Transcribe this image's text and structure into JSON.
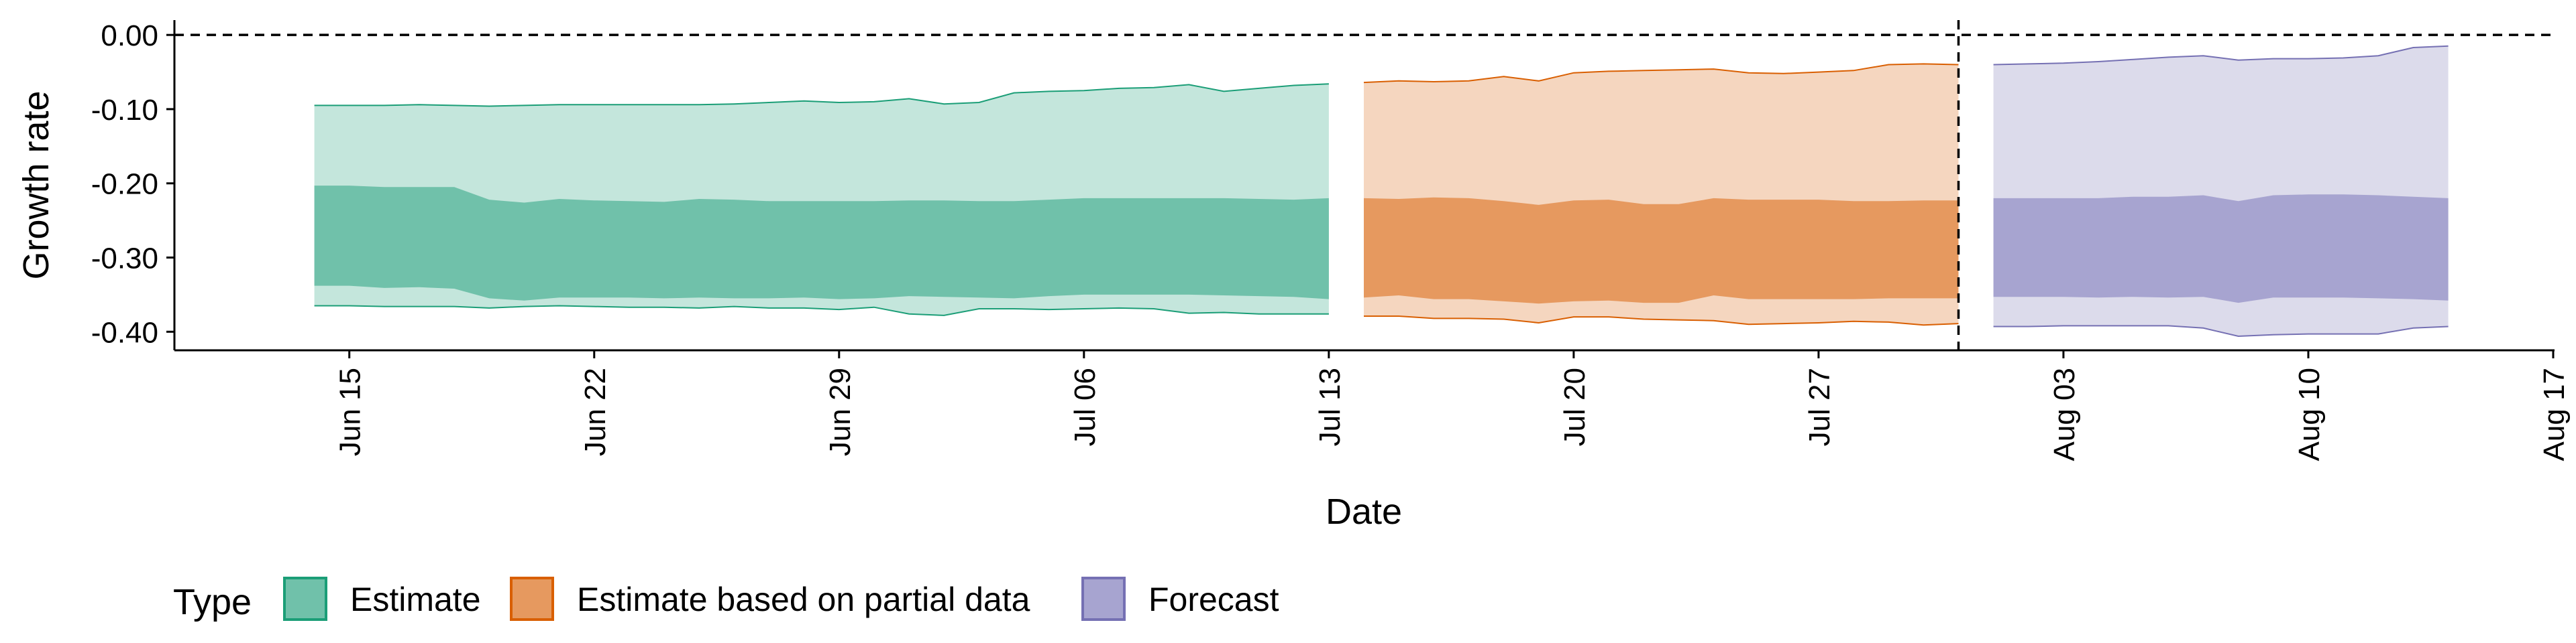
{
  "chart_data": {
    "type": "area",
    "xlabel": "Date",
    "ylabel": "Growth rate",
    "ylim": [
      -0.425,
      0.02
    ],
    "yticks": [
      0.0,
      -0.1,
      -0.2,
      -0.3,
      -0.4
    ],
    "ytick_labels": [
      "0.00",
      "-0.10",
      "-0.20",
      "-0.30",
      "-0.40"
    ],
    "xlim": [
      "2020-06-10",
      "2020-08-17"
    ],
    "xticks": [
      "2020-06-15",
      "2020-06-22",
      "2020-06-29",
      "2020-07-06",
      "2020-07-13",
      "2020-07-20",
      "2020-07-27",
      "2020-08-03",
      "2020-08-10",
      "2020-08-17"
    ],
    "xtick_labels": [
      "Jun 15",
      "Jun 22",
      "Jun 29",
      "Jul 06",
      "Jul 13",
      "Jul 20",
      "Jul 27",
      "Aug 03",
      "Aug 10",
      "Aug 17"
    ],
    "reference_hline": 0.0,
    "reference_vline": "2020-07-31",
    "legend": {
      "title": "Type",
      "position": "bottom-left",
      "entries": [
        {
          "label": "Estimate",
          "fill": "#70c1aa",
          "stroke": "#1b9e77"
        },
        {
          "label": "Estimate based on partial data",
          "fill": "#e6995f",
          "stroke": "#d95f02"
        },
        {
          "label": "Forecast",
          "fill": "#a7a4d0",
          "stroke": "#7570b3"
        }
      ]
    },
    "series": [
      {
        "name": "Estimate",
        "outer_fill": "#c4e6dc",
        "inner_fill": "#70c1aa",
        "stroke": "#1b9e77",
        "x": [
          "2020-06-14",
          "2020-06-15",
          "2020-06-16",
          "2020-06-17",
          "2020-06-18",
          "2020-06-19",
          "2020-06-20",
          "2020-06-21",
          "2020-06-22",
          "2020-06-23",
          "2020-06-24",
          "2020-06-25",
          "2020-06-26",
          "2020-06-27",
          "2020-06-28",
          "2020-06-29",
          "2020-06-30",
          "2020-07-01",
          "2020-07-02",
          "2020-07-03",
          "2020-07-04",
          "2020-07-05",
          "2020-07-06",
          "2020-07-07",
          "2020-07-08",
          "2020-07-09",
          "2020-07-10",
          "2020-07-11",
          "2020-07-12",
          "2020-07-13"
        ],
        "upper90": [
          -0.095,
          -0.095,
          -0.095,
          -0.094,
          -0.095,
          -0.096,
          -0.095,
          -0.094,
          -0.094,
          -0.094,
          -0.094,
          -0.094,
          -0.093,
          -0.091,
          -0.089,
          -0.091,
          -0.09,
          -0.086,
          -0.093,
          -0.091,
          -0.078,
          -0.076,
          -0.075,
          -0.072,
          -0.071,
          -0.067,
          -0.076,
          -0.072,
          -0.068,
          -0.066
        ],
        "upper50": [
          -0.203,
          -0.203,
          -0.205,
          -0.205,
          -0.205,
          -0.222,
          -0.226,
          -0.221,
          -0.223,
          -0.224,
          -0.225,
          -0.221,
          -0.222,
          -0.224,
          -0.224,
          -0.224,
          -0.224,
          -0.223,
          -0.223,
          -0.224,
          -0.224,
          -0.222,
          -0.22,
          -0.22,
          -0.22,
          -0.22,
          -0.22,
          -0.221,
          -0.222,
          -0.22
        ],
        "lower50": [
          -0.338,
          -0.338,
          -0.341,
          -0.34,
          -0.342,
          -0.355,
          -0.358,
          -0.354,
          -0.354,
          -0.354,
          -0.355,
          -0.354,
          -0.355,
          -0.355,
          -0.354,
          -0.356,
          -0.355,
          -0.352,
          -0.353,
          -0.354,
          -0.355,
          -0.352,
          -0.35,
          -0.35,
          -0.35,
          -0.35,
          -0.351,
          -0.352,
          -0.353,
          -0.356
        ],
        "lower90": [
          -0.365,
          -0.365,
          -0.366,
          -0.366,
          -0.366,
          -0.368,
          -0.366,
          -0.365,
          -0.366,
          -0.367,
          -0.367,
          -0.368,
          -0.366,
          -0.368,
          -0.368,
          -0.37,
          -0.367,
          -0.376,
          -0.378,
          -0.369,
          -0.369,
          -0.37,
          -0.369,
          -0.368,
          -0.369,
          -0.375,
          -0.374,
          -0.376,
          -0.376,
          -0.376
        ]
      },
      {
        "name": "Estimate based on partial data",
        "outer_fill": "#f5d6bf",
        "inner_fill": "#e6995f",
        "stroke": "#d95f02",
        "x": [
          "2020-07-14",
          "2020-07-15",
          "2020-07-16",
          "2020-07-17",
          "2020-07-18",
          "2020-07-19",
          "2020-07-20",
          "2020-07-21",
          "2020-07-22",
          "2020-07-23",
          "2020-07-24",
          "2020-07-25",
          "2020-07-26",
          "2020-07-27",
          "2020-07-28",
          "2020-07-29",
          "2020-07-30",
          "2020-07-31"
        ],
        "upper90": [
          -0.064,
          -0.062,
          -0.063,
          -0.062,
          -0.056,
          -0.062,
          -0.051,
          -0.049,
          -0.048,
          -0.047,
          -0.046,
          -0.051,
          -0.052,
          -0.05,
          -0.048,
          -0.04,
          -0.039,
          -0.04
        ],
        "upper50": [
          -0.22,
          -0.221,
          -0.219,
          -0.22,
          -0.224,
          -0.229,
          -0.223,
          -0.222,
          -0.228,
          -0.228,
          -0.22,
          -0.222,
          -0.222,
          -0.222,
          -0.224,
          -0.224,
          -0.223,
          -0.223
        ],
        "lower50": [
          -0.354,
          -0.351,
          -0.356,
          -0.356,
          -0.359,
          -0.362,
          -0.359,
          -0.358,
          -0.361,
          -0.361,
          -0.351,
          -0.356,
          -0.356,
          -0.356,
          -0.356,
          -0.355,
          -0.355,
          -0.355
        ],
        "lower90": [
          -0.379,
          -0.379,
          -0.382,
          -0.382,
          -0.383,
          -0.388,
          -0.38,
          -0.38,
          -0.383,
          -0.384,
          -0.385,
          -0.39,
          -0.389,
          -0.388,
          -0.386,
          -0.387,
          -0.391,
          -0.389
        ]
      },
      {
        "name": "Forecast",
        "outer_fill": "#dcdbeb",
        "inner_fill": "#a7a4d0",
        "stroke": "#7570b3",
        "x": [
          "2020-08-01",
          "2020-08-02",
          "2020-08-03",
          "2020-08-04",
          "2020-08-05",
          "2020-08-06",
          "2020-08-07",
          "2020-08-08",
          "2020-08-09",
          "2020-08-10",
          "2020-08-11",
          "2020-08-12",
          "2020-08-13",
          "2020-08-14"
        ],
        "upper90": [
          -0.04,
          -0.039,
          -0.038,
          -0.036,
          -0.033,
          -0.03,
          -0.028,
          -0.034,
          -0.032,
          -0.032,
          -0.031,
          -0.028,
          -0.017,
          -0.015
        ],
        "upper50": [
          -0.22,
          -0.22,
          -0.22,
          -0.22,
          -0.218,
          -0.218,
          -0.216,
          -0.224,
          -0.216,
          -0.215,
          -0.215,
          -0.216,
          -0.218,
          -0.22
        ],
        "lower50": [
          -0.353,
          -0.353,
          -0.353,
          -0.354,
          -0.353,
          -0.354,
          -0.353,
          -0.361,
          -0.354,
          -0.354,
          -0.354,
          -0.355,
          -0.356,
          -0.358
        ],
        "lower90": [
          -0.393,
          -0.393,
          -0.392,
          -0.392,
          -0.392,
          -0.392,
          -0.395,
          -0.406,
          -0.404,
          -0.403,
          -0.403,
          -0.403,
          -0.395,
          -0.393
        ]
      }
    ]
  }
}
